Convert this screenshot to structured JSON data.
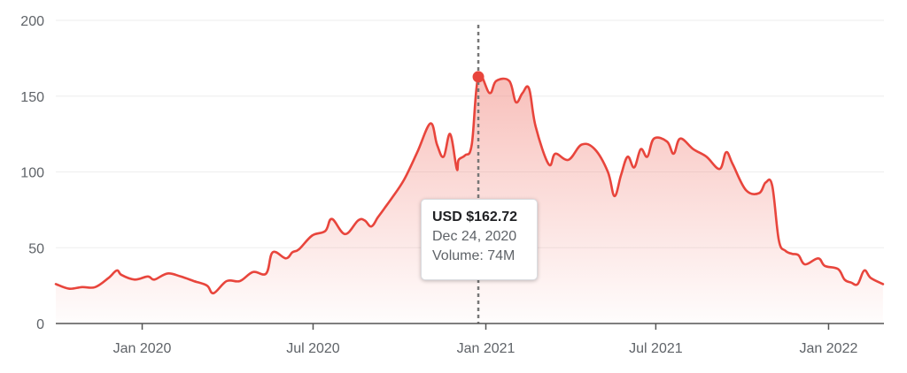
{
  "chart_data": {
    "type": "area",
    "title": "",
    "xlabel": "",
    "ylabel": "",
    "ylim": [
      0,
      200
    ],
    "xlim": [
      "2019-10-01",
      "2022-03-01"
    ],
    "grid": true,
    "y_ticks": [
      0,
      50,
      100,
      150,
      200
    ],
    "x_ticks": [
      {
        "date": "2020-01-01",
        "label": "Jan 2020"
      },
      {
        "date": "2020-07-01",
        "label": "Jul 2020"
      },
      {
        "date": "2021-01-01",
        "label": "Jan 2021"
      },
      {
        "date": "2021-07-01",
        "label": "Jul 2021"
      },
      {
        "date": "2022-01-01",
        "label": "Jan 2022"
      }
    ],
    "colors": {
      "line": "#e8453c",
      "fill": "#f28b82",
      "marker": "#e8453c",
      "grid": "#eeeeee",
      "axis": "#555555",
      "crosshair": "#777777"
    },
    "series": [
      {
        "x": [
          "2019-10-01",
          "2019-10-15",
          "2019-10-29",
          "2019-11-12",
          "2019-11-26",
          "2019-12-05",
          "2019-12-10",
          "2019-12-24",
          "2020-01-07",
          "2020-01-14",
          "2020-01-28",
          "2020-02-11",
          "2020-02-25",
          "2020-03-10",
          "2020-03-17",
          "2020-03-31",
          "2020-04-14",
          "2020-04-28",
          "2020-05-12",
          "2020-05-19",
          "2020-06-02",
          "2020-06-09",
          "2020-06-16",
          "2020-06-30",
          "2020-07-14",
          "2020-07-21",
          "2020-08-04",
          "2020-08-18",
          "2020-08-25",
          "2020-09-01",
          "2020-09-08",
          "2020-09-15",
          "2020-09-22",
          "2020-10-06",
          "2020-10-20",
          "2020-11-03",
          "2020-11-10",
          "2020-11-17",
          "2020-11-24",
          "2020-12-01",
          "2020-12-03",
          "2020-12-10",
          "2020-12-17",
          "2020-12-24",
          "2021-01-05",
          "2021-01-12",
          "2021-01-26",
          "2021-02-02",
          "2021-02-09",
          "2021-02-16",
          "2021-02-23",
          "2021-03-09",
          "2021-03-16",
          "2021-03-30",
          "2021-04-13",
          "2021-04-27",
          "2021-05-11",
          "2021-05-18",
          "2021-05-25",
          "2021-06-01",
          "2021-06-08",
          "2021-06-15",
          "2021-06-22",
          "2021-06-29",
          "2021-07-13",
          "2021-07-20",
          "2021-07-27",
          "2021-08-10",
          "2021-08-24",
          "2021-09-07",
          "2021-09-14",
          "2021-09-21",
          "2021-10-05",
          "2021-10-19",
          "2021-10-26",
          "2021-11-02",
          "2021-11-09",
          "2021-11-16",
          "2021-11-23",
          "2021-11-30",
          "2021-12-07",
          "2021-12-21",
          "2021-12-28",
          "2022-01-11",
          "2022-01-18",
          "2022-01-25",
          "2022-02-01",
          "2022-02-08",
          "2022-02-15",
          "2022-02-28"
        ],
        "y": [
          26,
          23,
          24,
          24,
          30,
          35,
          32,
          29,
          31,
          29,
          33,
          31,
          28,
          25,
          20,
          28,
          28,
          34,
          33,
          47,
          43,
          47,
          49,
          58,
          61,
          69,
          59,
          68,
          68,
          64,
          70,
          76,
          82,
          95,
          113,
          132,
          118,
          110,
          125,
          102,
          108,
          111,
          118,
          162.72,
          152,
          160,
          160,
          146,
          152,
          155,
          130,
          105,
          112,
          108,
          118,
          115,
          100,
          84,
          98,
          110,
          103,
          115,
          110,
          122,
          120,
          112,
          122,
          115,
          110,
          102,
          113,
          105,
          88,
          86,
          93,
          91,
          55,
          48,
          46,
          45,
          39,
          43,
          38,
          36,
          29,
          27,
          26,
          35,
          30,
          26
        ]
      }
    ],
    "marker": {
      "x": "2020-12-24",
      "y": 162.72
    },
    "tooltip": {
      "price": "USD $162.72",
      "date": "Dec 24, 2020",
      "volume": "Volume: 74M"
    }
  }
}
